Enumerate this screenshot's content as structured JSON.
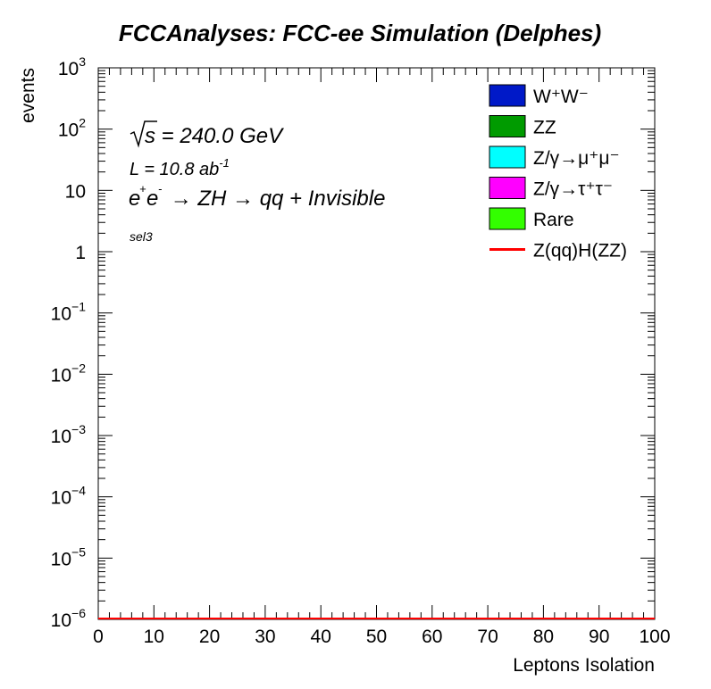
{
  "chart_data": {
    "type": "bar",
    "title": "FCCAnalyses: FCC-ee Simulation (Delphes)",
    "xlabel": "Leptons Isolation",
    "ylabel": "events",
    "xlim": [
      0,
      100
    ],
    "ylim": [
      1e-06,
      1000
    ],
    "yscale": "log",
    "x_ticks": [
      "0",
      "10",
      "20",
      "30",
      "40",
      "50",
      "60",
      "70",
      "80",
      "90",
      "100"
    ],
    "y_ticks": [
      {
        "value": 1000.0,
        "base": "10",
        "exp": "3"
      },
      {
        "value": 100.0,
        "base": "10",
        "exp": "2"
      },
      {
        "value": 10.0,
        "base": "10",
        "exp": ""
      },
      {
        "value": 1,
        "base": "1",
        "exp": ""
      },
      {
        "value": 0.1,
        "base": "10",
        "exp": "−1"
      },
      {
        "value": 0.01,
        "base": "10",
        "exp": "−2"
      },
      {
        "value": 0.001,
        "base": "10",
        "exp": "−3"
      },
      {
        "value": 0.0001,
        "base": "10",
        "exp": "−4"
      },
      {
        "value": 1e-05,
        "base": "10",
        "exp": "−5"
      },
      {
        "value": 1e-06,
        "base": "10",
        "exp": "−6"
      }
    ],
    "annotations": {
      "sqrt_s": "s = 240.0 GeV",
      "lumi": "L = 10.8 ab",
      "lumi_exp": "-1",
      "process": "e e  → ZH → qq + Invisible",
      "process_e_sup1": "+",
      "process_e_sup2": "-",
      "selection": "sel3"
    },
    "legend": {
      "position": "top-right",
      "entries": [
        {
          "label": "W⁺W⁻",
          "color": "#0019c8",
          "kind": "fill"
        },
        {
          "label": "ZZ",
          "color": "#009b00",
          "kind": "fill"
        },
        {
          "label": "Z/γ→μ⁺μ⁻",
          "color": "#00ffff",
          "kind": "fill"
        },
        {
          "label": "Z/γ→τ⁺τ⁻",
          "color": "#ff00ff",
          "kind": "fill"
        },
        {
          "label": "Rare",
          "color": "#33ff00",
          "kind": "fill"
        },
        {
          "label": "Z(qq)H(ZZ)",
          "color": "#ff0000",
          "kind": "line"
        }
      ]
    },
    "series": [
      {
        "name": "Z(qq)H(ZZ)",
        "color": "#ff0000",
        "values": []
      }
    ],
    "grid": false
  }
}
